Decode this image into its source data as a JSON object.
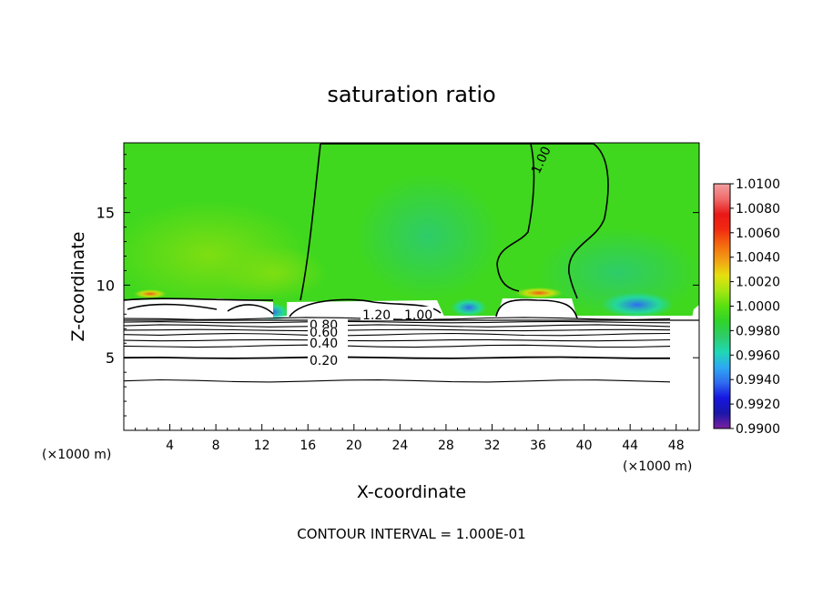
{
  "chart_data": {
    "type": "heatmap",
    "title": "saturation ratio",
    "xlabel": "X-coordinate",
    "ylabel": "Z-coordinate",
    "x_unit": "(×1000 m)",
    "xlim": [
      0,
      50
    ],
    "ylim": [
      0,
      19.8
    ],
    "x_ticks": [
      4,
      8,
      12,
      16,
      20,
      24,
      28,
      32,
      36,
      40,
      44,
      48
    ],
    "y_ticks": [
      5,
      10,
      15
    ],
    "footer": "CONTOUR INTERVAL = 1.000E-01",
    "colorbar": {
      "min": 0.99,
      "max": 1.01,
      "ticks": [
        "1.0100",
        "1.0080",
        "1.0060",
        "1.0040",
        "1.0020",
        "1.0000",
        "0.9980",
        "0.9960",
        "0.9940",
        "0.9920",
        "0.9900"
      ],
      "colors": [
        "#7a1fa0",
        "#1a16a8",
        "#1616e0",
        "#2f6cf0",
        "#2ea8f2",
        "#1fd8b4",
        "#2ecc6a",
        "#2fd32a",
        "#58e010",
        "#a6e612",
        "#e6e010",
        "#f2a014",
        "#f46a10",
        "#f22a10",
        "#e81818",
        "#f06a6a",
        "#f2a0a0"
      ]
    },
    "contour_labels": [
      "1.00",
      "1.20",
      "1.00",
      "0.80",
      "0.60",
      "0.40",
      "0.20"
    ],
    "contours_below": [
      {
        "z": 3.4
      },
      {
        "z": 5.0
      },
      {
        "z": 5.8
      },
      {
        "z": 6.2
      },
      {
        "z": 6.6
      },
      {
        "z": 6.9
      },
      {
        "z": 7.2
      },
      {
        "z": 7.45
      },
      {
        "z": 7.7
      }
    ]
  }
}
